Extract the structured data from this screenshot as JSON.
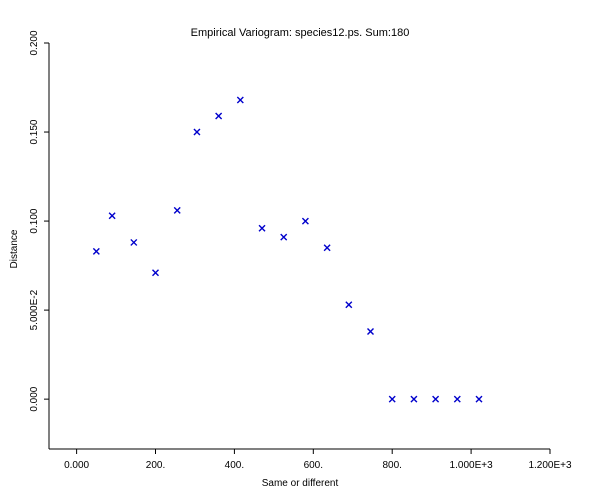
{
  "chart_data": {
    "type": "scatter",
    "title": "Empirical Variogram: species12.ps. Sum:180",
    "xlabel": "Same or different",
    "ylabel": "Distance",
    "xlim": [
      -70,
      1200
    ],
    "ylim": [
      -0.028,
      0.2
    ],
    "x_ticks": [
      {
        "value": 0,
        "label": "0.000"
      },
      {
        "value": 200,
        "label": "200."
      },
      {
        "value": 400,
        "label": "400."
      },
      {
        "value": 600,
        "label": "600."
      },
      {
        "value": 800,
        "label": "800."
      },
      {
        "value": 1000,
        "label": "1.000E+3"
      },
      {
        "value": 1200,
        "label": "1.200E+3"
      }
    ],
    "y_ticks": [
      {
        "value": 0,
        "label": "0.000"
      },
      {
        "value": 0.05,
        "label": "5.000E-2"
      },
      {
        "value": 0.1,
        "label": "0.100"
      },
      {
        "value": 0.15,
        "label": "0.150"
      },
      {
        "value": 0.2,
        "label": "0.200"
      }
    ],
    "marker_color": "#0000cc",
    "marker": "x",
    "grid": false,
    "points": [
      {
        "x": 50,
        "y": 0.083
      },
      {
        "x": 90,
        "y": 0.103
      },
      {
        "x": 145,
        "y": 0.088
      },
      {
        "x": 200,
        "y": 0.071
      },
      {
        "x": 255,
        "y": 0.106
      },
      {
        "x": 305,
        "y": 0.15
      },
      {
        "x": 360,
        "y": 0.159
      },
      {
        "x": 415,
        "y": 0.168
      },
      {
        "x": 470,
        "y": 0.096
      },
      {
        "x": 525,
        "y": 0.091
      },
      {
        "x": 580,
        "y": 0.1
      },
      {
        "x": 635,
        "y": 0.085
      },
      {
        "x": 690,
        "y": 0.053
      },
      {
        "x": 745,
        "y": 0.038
      },
      {
        "x": 800,
        "y": 0.0
      },
      {
        "x": 855,
        "y": 0.0
      },
      {
        "x": 910,
        "y": 0.0
      },
      {
        "x": 965,
        "y": 0.0
      },
      {
        "x": 1020,
        "y": 0.0
      }
    ]
  }
}
